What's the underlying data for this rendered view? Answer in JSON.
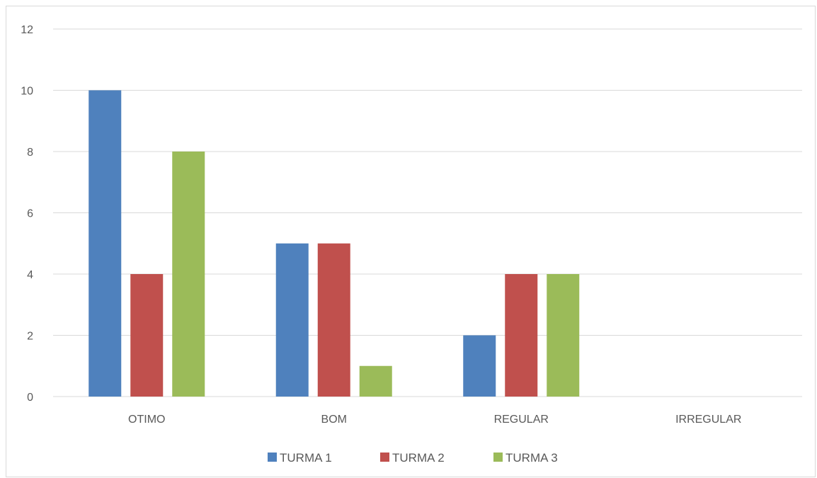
{
  "chart_data": {
    "type": "bar",
    "title": "",
    "xlabel": "",
    "ylabel": "",
    "categories": [
      "OTIMO",
      "BOM",
      "REGULAR",
      "IRREGULAR"
    ],
    "series": [
      {
        "name": "TURMA 1",
        "values": [
          10,
          5,
          2,
          0
        ],
        "color": "#4f81bd"
      },
      {
        "name": "TURMA 2",
        "values": [
          4,
          5,
          4,
          0
        ],
        "color": "#c0504d"
      },
      {
        "name": "TURMA 3",
        "values": [
          8,
          1,
          4,
          0
        ],
        "color": "#9bbb59"
      }
    ],
    "ylim": [
      0,
      12
    ],
    "yticks": [
      "0",
      "2",
      "4",
      "6",
      "8",
      "10",
      "12"
    ],
    "grid": true,
    "legend_position": "bottom",
    "colors": {
      "gridline": "#d9d9d9",
      "text": "#595959"
    }
  }
}
